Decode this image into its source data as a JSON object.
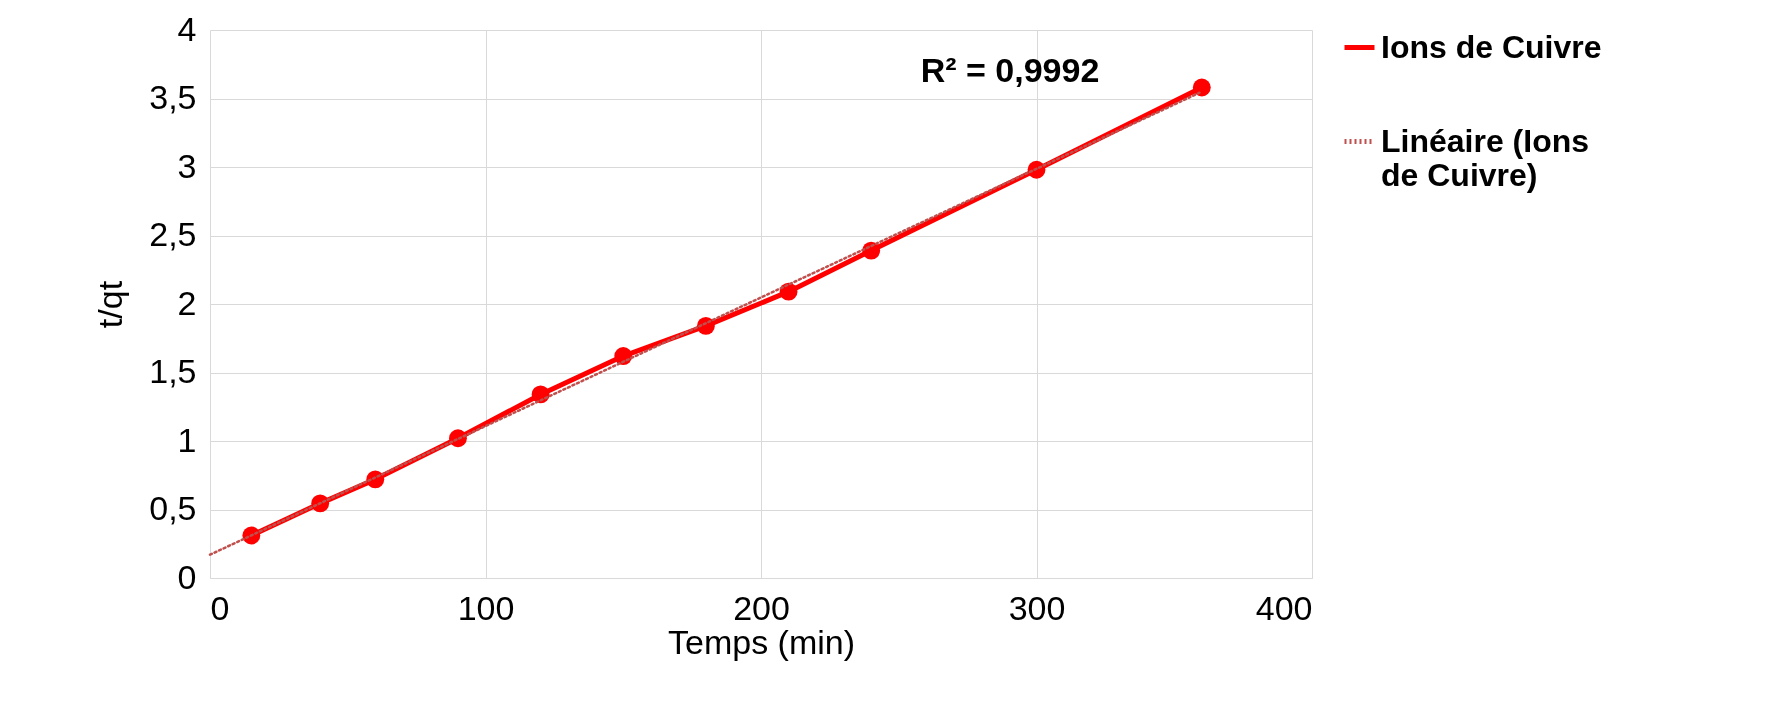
{
  "chart_data": {
    "type": "line",
    "xlabel": "Temps (min)",
    "ylabel": "t/qt",
    "xlim": [
      0,
      400
    ],
    "xticks": [
      0,
      100,
      200,
      300,
      400
    ],
    "ylim": [
      0,
      4
    ],
    "yticks": [
      0,
      {
        "value": 0.5,
        "label": "0,5"
      },
      1,
      {
        "value": 1.5,
        "label": "1,5"
      },
      2,
      {
        "value": 2.5,
        "label": "2,5"
      },
      3,
      {
        "value": 3.5,
        "label": "3,5"
      },
      4
    ],
    "grid": true,
    "legend": "right",
    "annotations": [
      "R² = 0,9992"
    ],
    "series": [
      {
        "name": "Ions de Cuivre",
        "color": "#ff0000",
        "marker": "circle",
        "line_style": "solid",
        "x": [
          15,
          40,
          60,
          90,
          120,
          150,
          180,
          210,
          240,
          300,
          360
        ],
        "values": [
          0.31,
          0.545,
          0.72,
          1.02,
          1.34,
          1.62,
          1.84,
          2.09,
          2.39,
          2.98,
          3.58
        ]
      },
      {
        "name": "Linéaire (Ions de Cuivre)",
        "color": "#c0504d",
        "marker": "none",
        "line_style": "dotted",
        "x": [
          0,
          360
        ],
        "values": [
          0.17,
          3.55
        ]
      }
    ]
  }
}
